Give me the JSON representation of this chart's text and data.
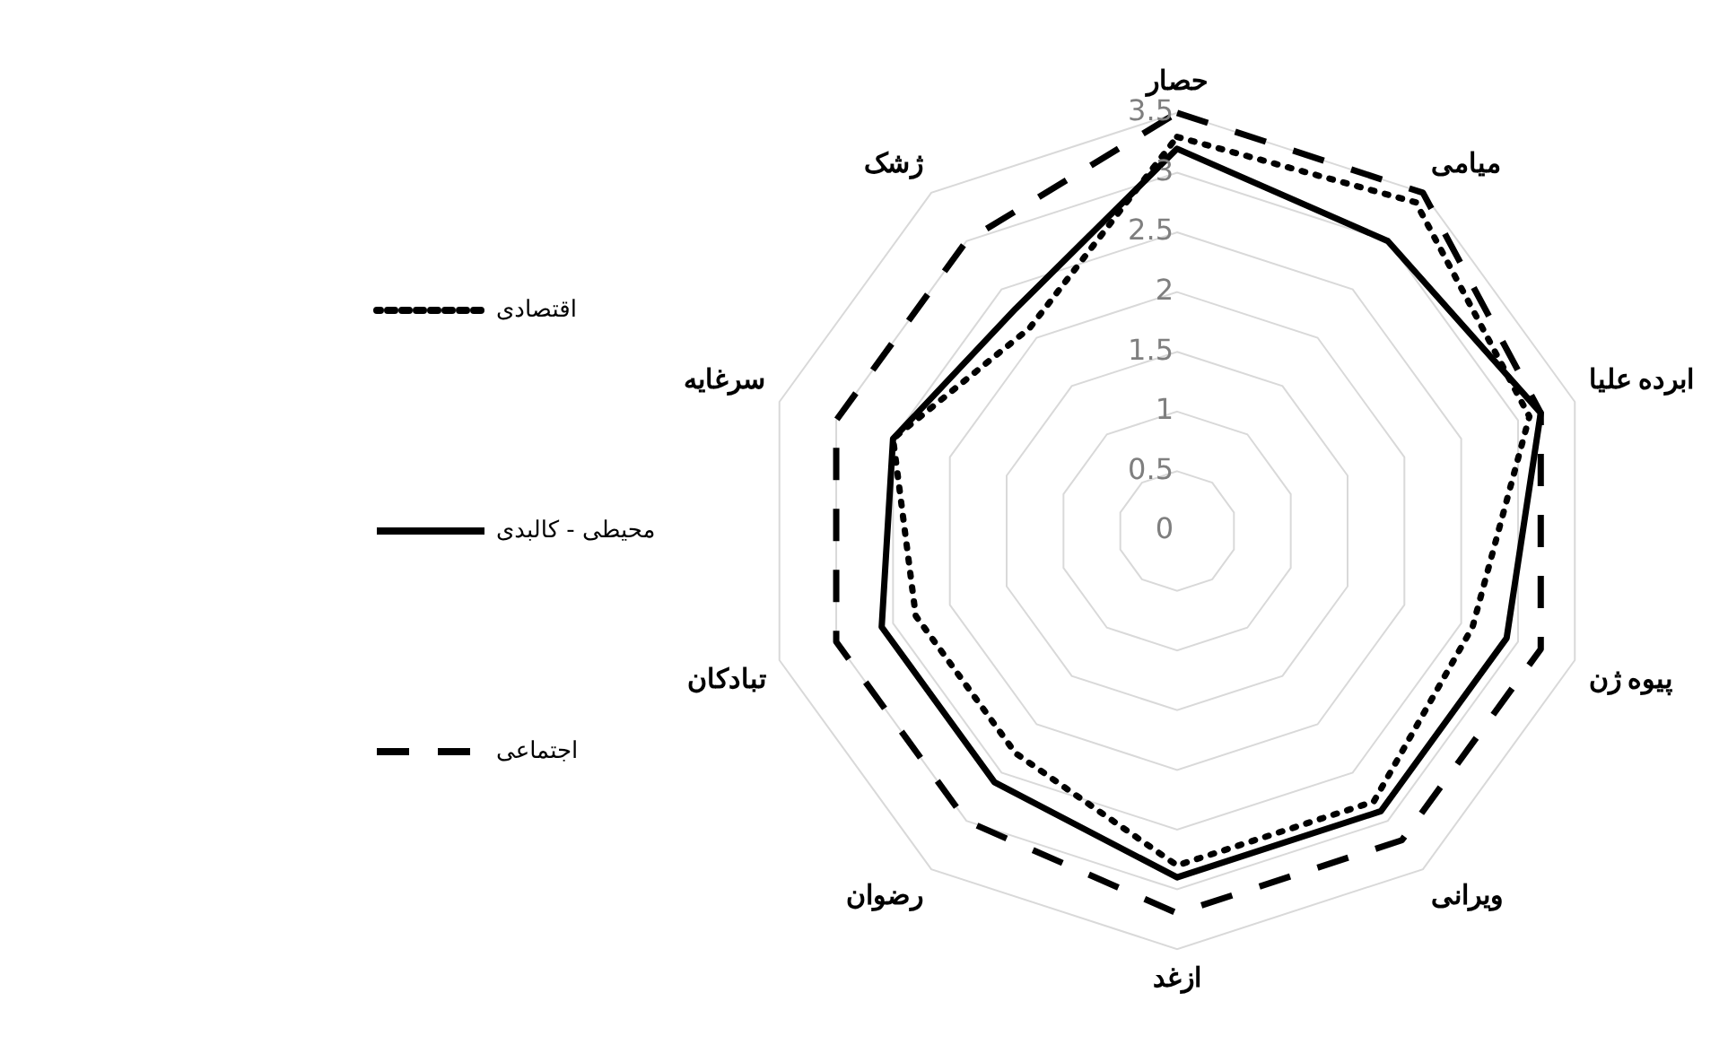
{
  "chart_data": {
    "type": "radar",
    "categories": [
      "حصار",
      "میامی",
      "ابرده علیا",
      "پیوه ژن",
      "ویرانی",
      "ازغد",
      "رضوان",
      "تبادکان",
      "سرغایه",
      "ژشک"
    ],
    "series": [
      {
        "name": "اقتصادی",
        "color": "#000000",
        "line_style": "dotted",
        "values": [
          3.3,
          3.4,
          3.1,
          2.6,
          2.8,
          2.8,
          2.3,
          2.3,
          2.5,
          2.1
        ]
      },
      {
        "name": "محیطی - کالبدی",
        "color": "#000000",
        "line_style": "solid",
        "values": [
          3.2,
          3.0,
          3.2,
          2.9,
          2.9,
          2.9,
          2.6,
          2.6,
          2.5,
          2.3
        ]
      },
      {
        "name": "اجتماعی",
        "color": "#000000",
        "line_style": "dashed",
        "values": [
          3.5,
          3.5,
          3.2,
          3.2,
          3.2,
          3.2,
          3.0,
          3.0,
          3.0,
          3.0
        ]
      }
    ],
    "ylim": [
      0,
      3.5
    ],
    "yticks": [
      0,
      0.5,
      1,
      1.5,
      2,
      2.5,
      3,
      3.5
    ],
    "grid": true,
    "legend": "left",
    "marker": "none"
  }
}
